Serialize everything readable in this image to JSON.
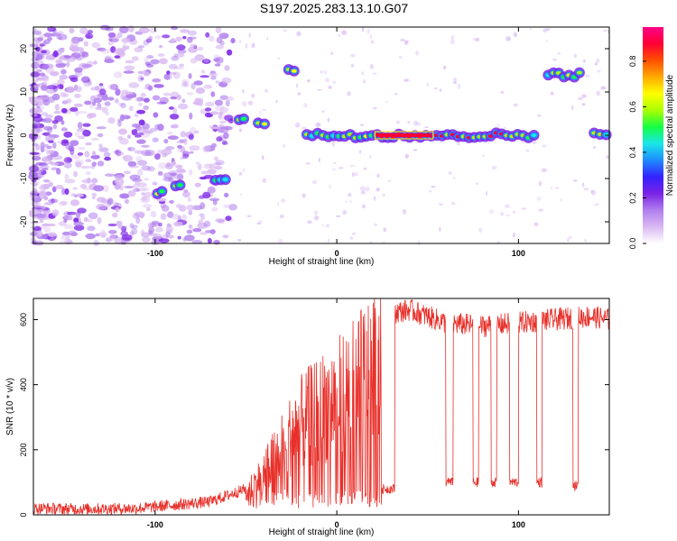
{
  "chart_data": [
    {
      "type": "heatmap",
      "title": "S197.2025.283.13.10.G07",
      "xlabel": "Height of straight line (km)",
      "ylabel": "Frequency (Hz)",
      "xlim": [
        -167,
        150
      ],
      "ylim": [
        -25,
        25
      ],
      "x_ticks": [
        -100,
        0,
        100
      ],
      "y_ticks": [
        -20,
        -10,
        0,
        10,
        20
      ],
      "colorbar": {
        "label": "Normalized spectral amplitude",
        "range": [
          0.0,
          0.95
        ],
        "ticks": [
          "0.0",
          "0.2",
          "0.4",
          "0.6",
          "0.8"
        ],
        "colors": [
          "#ffffff",
          "#d9b8f2",
          "#b080ee",
          "#7a22e6",
          "#3322ff",
          "#1e8cff",
          "#19e6e6",
          "#14ff44",
          "#aaff00",
          "#ffff00",
          "#ffaa00",
          "#ff5000",
          "#ff0033",
          "#ff0088"
        ]
      },
      "frequency_track": [
        {
          "x": [
            -100,
            -95
          ],
          "y": -13
        },
        {
          "x": [
            -90,
            -85
          ],
          "y": -12
        },
        {
          "x": [
            -68,
            -60
          ],
          "y": -10
        },
        {
          "x": [
            -55,
            -50
          ],
          "y": 4
        },
        {
          "x": [
            -45,
            -38
          ],
          "y": 3
        },
        {
          "x": [
            -28,
            -22
          ],
          "y": 15
        },
        {
          "x": [
            -18,
            110
          ],
          "y": 0
        },
        {
          "x": [
            115,
            135
          ],
          "y": 14
        },
        {
          "x": [
            140,
            150
          ],
          "y": 0
        }
      ]
    },
    {
      "type": "line",
      "xlabel": "Height of straight line (km)",
      "ylabel": "SNR (10 * v/v)",
      "xlim": [
        -167,
        150
      ],
      "ylim": [
        0,
        665
      ],
      "x_ticks": [
        -100,
        0,
        100
      ],
      "y_ticks": [
        0,
        200,
        400,
        600
      ],
      "line_color": "#e8302a",
      "series": [
        {
          "name": "SNR",
          "x": [
            -167,
            -140,
            -110,
            -90,
            -70,
            -60,
            -50,
            -40,
            -30,
            -20,
            -10,
            0,
            10,
            15,
            20,
            25,
            30,
            40,
            50,
            60,
            80,
            100,
            120,
            140,
            150
          ],
          "values": [
            20,
            18,
            20,
            30,
            40,
            60,
            80,
            150,
            250,
            330,
            380,
            420,
            470,
            500,
            550,
            590,
            620,
            630,
            610,
            590,
            580,
            590,
            600,
            610,
            600
          ]
        }
      ],
      "dropouts": [
        {
          "x": [
            25,
            32
          ],
          "value": 80
        },
        {
          "x": [
            60,
            64
          ],
          "value": 100
        },
        {
          "x": [
            75,
            78
          ],
          "value": 100
        },
        {
          "x": [
            85,
            88
          ],
          "value": 100
        },
        {
          "x": [
            95,
            100
          ],
          "value": 100
        },
        {
          "x": [
            110,
            113
          ],
          "value": 100
        },
        {
          "x": [
            130,
            133
          ],
          "value": 90
        }
      ]
    }
  ]
}
